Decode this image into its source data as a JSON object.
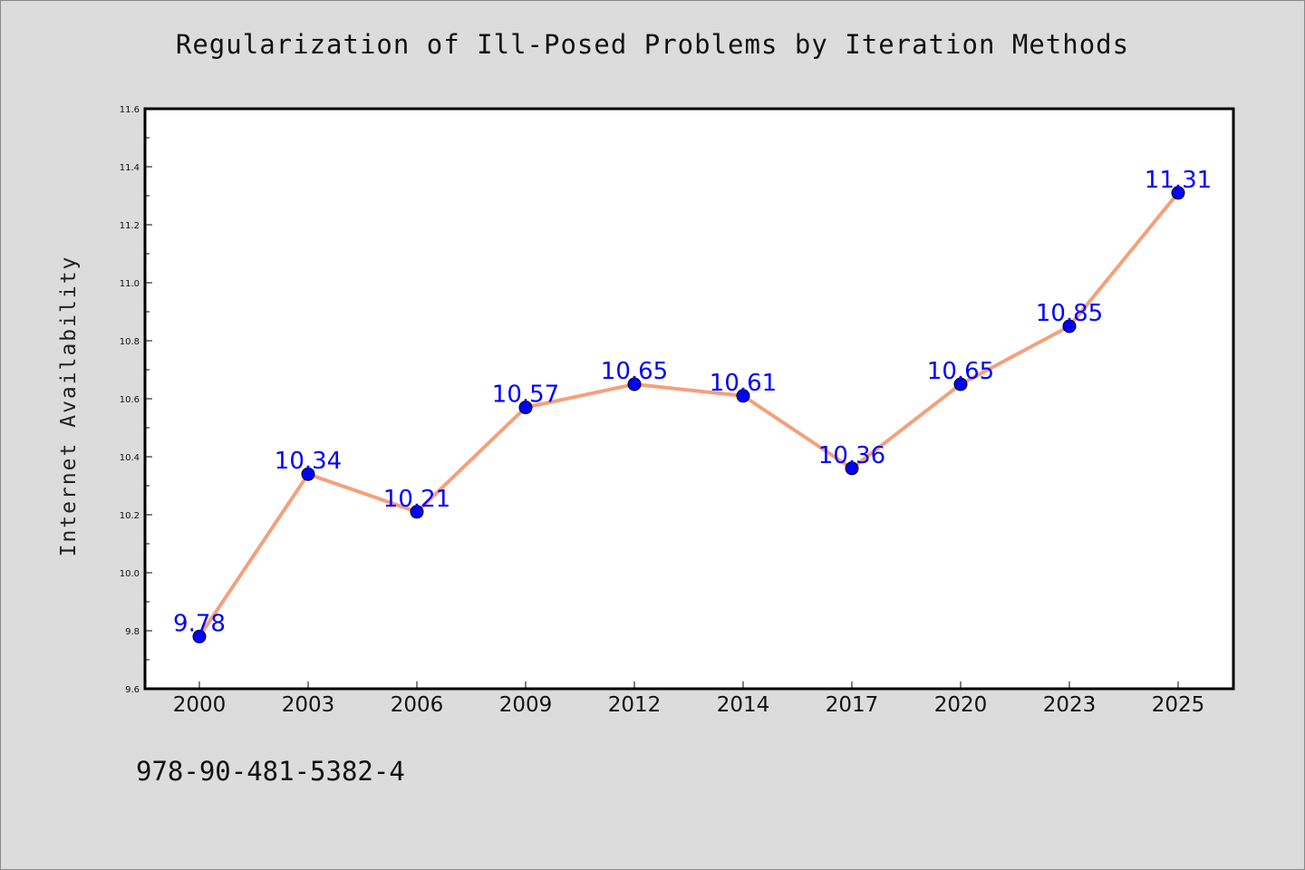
{
  "chart_data": {
    "type": "line",
    "title": "Regularization of Ill-Posed Problems by Iteration Methods",
    "xlabel": "",
    "ylabel": "Internet Availability",
    "categories": [
      "2000",
      "2003",
      "2006",
      "2009",
      "2012",
      "2014",
      "2017",
      "2020",
      "2023",
      "2025"
    ],
    "series": [
      {
        "values": [
          9.78,
          10.34,
          10.21,
          10.57,
          10.65,
          10.61,
          10.36,
          10.65,
          10.85,
          11.31
        ],
        "line_color": "#f4a07c",
        "marker_color": "#0000ff"
      }
    ],
    "data_labels": [
      "9.78",
      "10.34",
      "10.21",
      "10.57",
      "10.65",
      "10.61",
      "10.36",
      "10.65",
      "10.85",
      "11.31"
    ],
    "ylim": [
      9.6,
      11.6
    ],
    "yticks": [
      "9.6",
      "9.8",
      "10.0",
      "10.2",
      "10.4",
      "10.6",
      "10.8",
      "11.0",
      "11.2",
      "11.4",
      "11.6"
    ],
    "grid": false,
    "legend": "none"
  },
  "footer_text": "978-90-481-5382-4"
}
